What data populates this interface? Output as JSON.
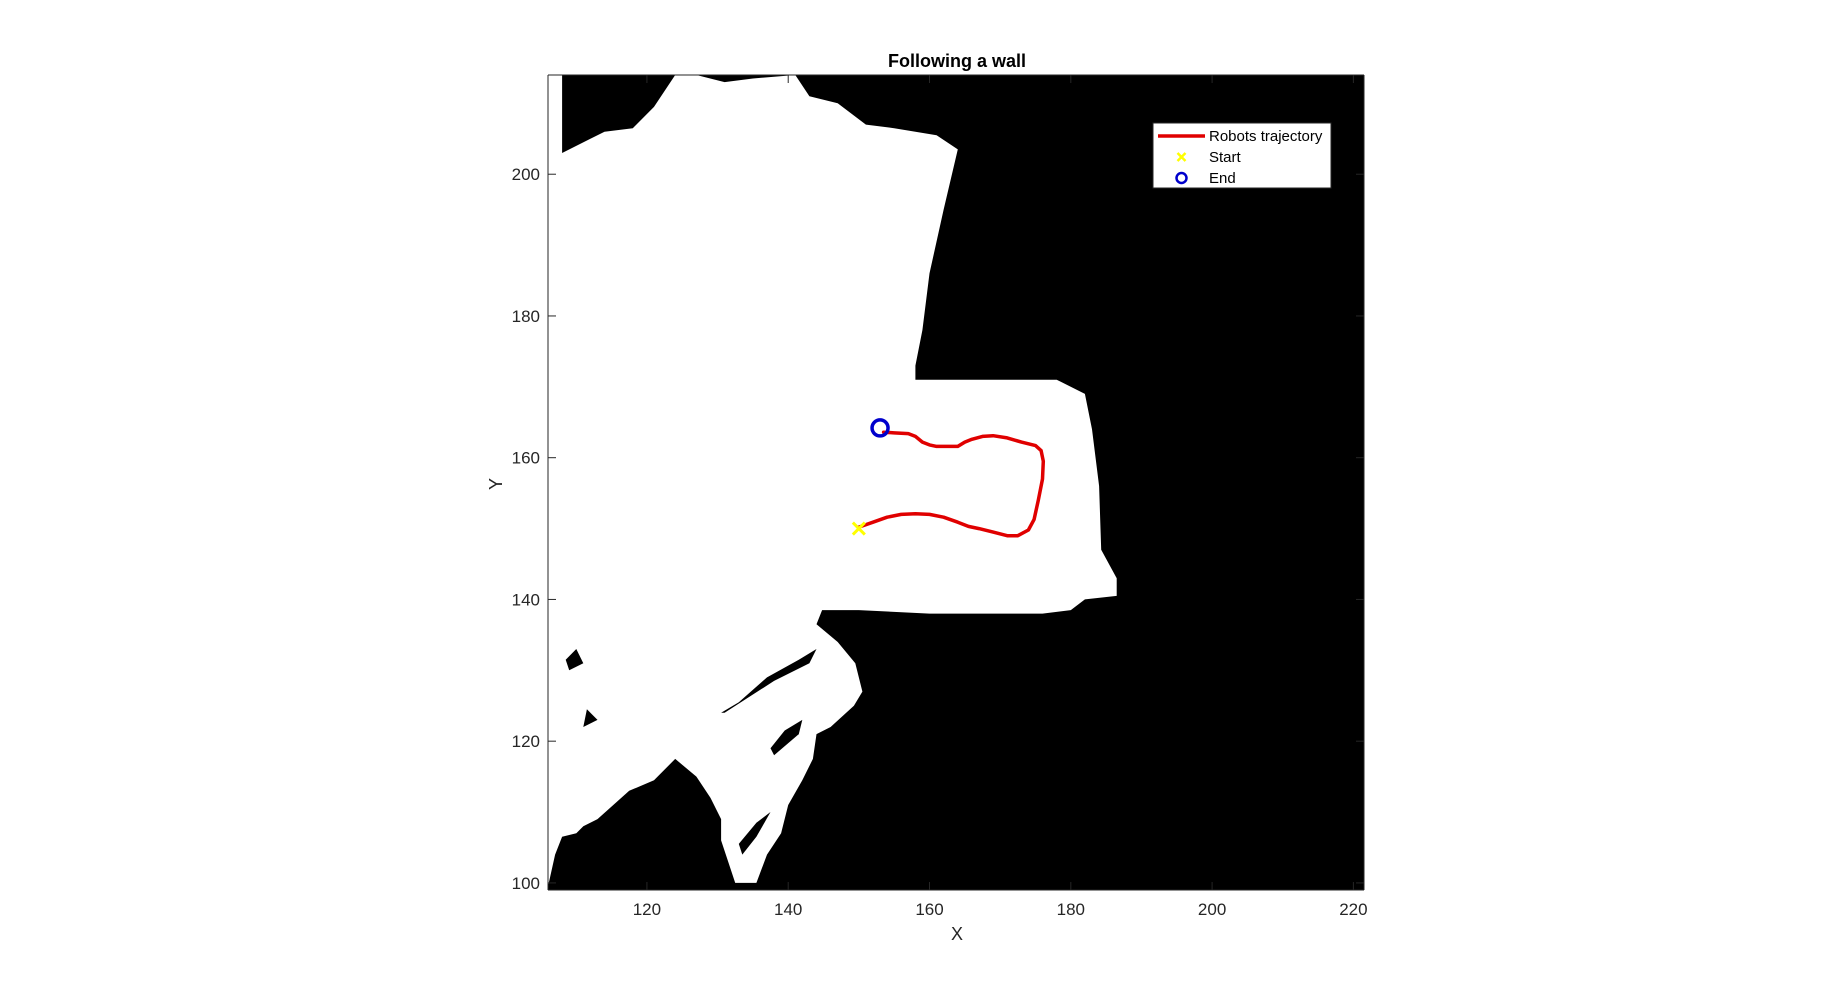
{
  "chart_data": {
    "type": "line",
    "title": "Following a wall",
    "xlabel": "X",
    "ylabel": "Y",
    "xlim": [
      106,
      221.5
    ],
    "ylim": [
      99,
      214
    ],
    "xticks": [
      120,
      140,
      160,
      180,
      200,
      220
    ],
    "yticks": [
      100,
      120,
      140,
      160,
      180,
      200
    ],
    "grid": false,
    "legend_position": "top-right",
    "background": "occupancy map (black = occupied, white = free)",
    "colors": {
      "occupied": "#000000",
      "free": "#ffffff",
      "trajectory": "#e00000",
      "start": "#ffff00",
      "end": "#0000cc"
    },
    "series": [
      {
        "name": "Robots trajectory",
        "style": "line",
        "color": "#e00000",
        "points": [
          [
            150,
            150.2
          ],
          [
            152,
            150.9
          ],
          [
            154,
            151.6
          ],
          [
            156,
            152.0
          ],
          [
            158,
            152.1
          ],
          [
            160,
            152.0
          ],
          [
            162,
            151.6
          ],
          [
            164,
            150.9
          ],
          [
            165.5,
            150.3
          ],
          [
            167,
            150.0
          ],
          [
            169,
            149.5
          ],
          [
            171,
            149.0
          ],
          [
            172.5,
            149.0
          ],
          [
            174,
            149.8
          ],
          [
            174.8,
            151.3
          ],
          [
            175.4,
            154.0
          ],
          [
            176,
            157.0
          ],
          [
            176.1,
            159.5
          ],
          [
            175.8,
            161.0
          ],
          [
            175,
            161.7
          ],
          [
            173,
            162.2
          ],
          [
            171,
            162.8
          ],
          [
            169,
            163.1
          ],
          [
            167.5,
            163.0
          ],
          [
            166,
            162.6
          ],
          [
            165,
            162.2
          ],
          [
            164,
            161.6
          ],
          [
            162.5,
            161.6
          ],
          [
            161,
            161.6
          ],
          [
            160,
            161.8
          ],
          [
            159,
            162.2
          ],
          [
            158,
            163.0
          ],
          [
            157,
            163.4
          ],
          [
            155,
            163.5
          ],
          [
            153.5,
            163.6
          ]
        ]
      },
      {
        "name": "Start",
        "style": "x-marker",
        "color": "#ffff00",
        "points": [
          [
            150,
            150
          ]
        ]
      },
      {
        "name": "End",
        "style": "o-marker",
        "color": "#0000cc",
        "points": [
          [
            153,
            164.2
          ]
        ]
      }
    ],
    "free_space_outline": [
      [
        106,
        99.5
      ],
      [
        106,
        214
      ],
      [
        108,
        214
      ],
      [
        108,
        203
      ],
      [
        112,
        205
      ],
      [
        114,
        206
      ],
      [
        118,
        206.5
      ],
      [
        121,
        209.5
      ],
      [
        124,
        214
      ],
      [
        127,
        214
      ],
      [
        131,
        213
      ],
      [
        135,
        213.5
      ],
      [
        141,
        214
      ],
      [
        143,
        211
      ],
      [
        147,
        210
      ],
      [
        151,
        207
      ],
      [
        155,
        206.5
      ],
      [
        161,
        205.5
      ],
      [
        164,
        203.5
      ],
      [
        162,
        195
      ],
      [
        160,
        186
      ],
      [
        159,
        178
      ],
      [
        158,
        173
      ],
      [
        158,
        171
      ],
      [
        178,
        171
      ],
      [
        182,
        169
      ],
      [
        183,
        164
      ],
      [
        184,
        156
      ],
      [
        184.3,
        147
      ],
      [
        186.5,
        143
      ],
      [
        186.5,
        140.5
      ],
      [
        182,
        140
      ],
      [
        180,
        138.5
      ],
      [
        176,
        138
      ],
      [
        160,
        138
      ],
      [
        150,
        138.5
      ],
      [
        144.8,
        138.5
      ],
      [
        144,
        136.5
      ],
      [
        147,
        134
      ],
      [
        149.5,
        131
      ],
      [
        150.5,
        127
      ],
      [
        149.3,
        125
      ],
      [
        146,
        122
      ],
      [
        144,
        121
      ],
      [
        143.5,
        117.5
      ],
      [
        142,
        114.5
      ],
      [
        140,
        111
      ],
      [
        139,
        107
      ],
      [
        137,
        104
      ],
      [
        135.5,
        100
      ],
      [
        132.5,
        100
      ],
      [
        131.5,
        103
      ],
      [
        130.5,
        106
      ],
      [
        130.5,
        109
      ],
      [
        129,
        112
      ],
      [
        127,
        115
      ],
      [
        124,
        117.5
      ],
      [
        121,
        114.5
      ],
      [
        117.5,
        113
      ],
      [
        113,
        109
      ],
      [
        111,
        108
      ],
      [
        110,
        107
      ],
      [
        108,
        106.5
      ],
      [
        107,
        104
      ],
      [
        106,
        99.5
      ]
    ],
    "occupied_islands": [
      [
        [
          131,
          124
        ],
        [
          138,
          128.5
        ],
        [
          143,
          131
        ],
        [
          144,
          133
        ],
        [
          141.5,
          131.5
        ],
        [
          137,
          129
        ],
        [
          133,
          125.5
        ],
        [
          130.5,
          124
        ]
      ],
      [
        [
          138,
          118
        ],
        [
          141.5,
          121
        ],
        [
          142,
          123
        ],
        [
          139.5,
          121.5
        ],
        [
          137.5,
          119
        ]
      ],
      [
        [
          133.5,
          104
        ],
        [
          135.5,
          106.5
        ],
        [
          137.5,
          110
        ],
        [
          135.5,
          108.5
        ],
        [
          133,
          105.5
        ]
      ],
      [
        [
          109,
          130
        ],
        [
          111,
          131
        ],
        [
          110,
          133
        ],
        [
          108.5,
          131.5
        ]
      ],
      [
        [
          111,
          122
        ],
        [
          113,
          123
        ],
        [
          111.5,
          124.5
        ]
      ]
    ]
  },
  "legend": {
    "items": [
      {
        "label": "Robots trajectory",
        "symbol": "line",
        "color": "#e00000"
      },
      {
        "label": "Start",
        "symbol": "x",
        "color": "#ffff00"
      },
      {
        "label": "End",
        "symbol": "o",
        "color": "#0000cc"
      }
    ]
  }
}
